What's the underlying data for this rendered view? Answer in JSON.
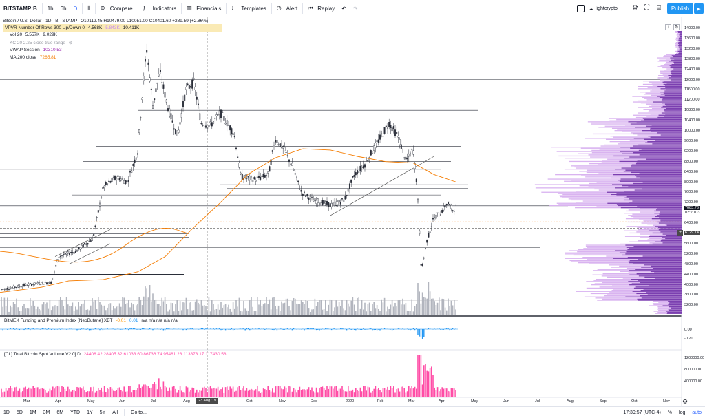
{
  "toolbar": {
    "symbol": "BITSTAMP:B",
    "intervals": [
      "1h",
      "6h",
      "D"
    ],
    "compare": "Compare",
    "indicators": "Indicators",
    "financials": "Financials",
    "templates": "Templates",
    "alert": "Alert",
    "replay": "Replay",
    "layout_name": "lightcrypto",
    "publish": "Publish"
  },
  "legend": {
    "title": "Bitcoin / U.S. Dollar · 1D · BITSTAMP",
    "ohlc": "O10112.45  H10479.00  L10051.00  C10401.60  +289.59 (+2.86%)",
    "vpvr": "VPVR Number Of Rows 300 Up/Down 0",
    "vpvr_v1": "4.568K",
    "vpvr_v2": "5.843K",
    "vpvr_v3": "10.411K",
    "vol": "Vol 20",
    "vol_v1": "5.557K",
    "vol_v2": "9.029K",
    "kc": "KC 20 2.25 close true range",
    "vwap": "VWAP Session",
    "vwap_v": "10310.53",
    "ma": "MA 200 close",
    "ma_v": "7265.81"
  },
  "funding": {
    "legend": "BitMEX Funding and Premium Index [NeoButane] XBT",
    "v1": "-0.01",
    "v2": "0.01",
    "rest": "n/a  n/a  n/a  n/a  n/a",
    "axis": [
      "0.00",
      "-0.20"
    ]
  },
  "spot": {
    "legend": "[CL] Total Bitcoin Spot Volume V2.0] D",
    "values": "24408.42  28405.32  61033.60  86736.74  95481.28  113873.17  117430.58",
    "axis": [
      "1200000.00",
      "800000.00",
      "400000.00"
    ]
  },
  "price_axis": [
    "14000.00",
    "13600.00",
    "13200.00",
    "12800.00",
    "12400.00",
    "12000.00",
    "11600.00",
    "11200.00",
    "10800.00",
    "10400.00",
    "10000.00",
    "9600.00",
    "9200.00",
    "8800.00",
    "8400.00",
    "8000.00",
    "7600.00",
    "7200.00",
    "6800.00",
    "6400.00",
    "6000.00",
    "5600.00",
    "5200.00",
    "4800.00",
    "4400.00",
    "4000.00",
    "3600.00",
    "3200.00"
  ],
  "price_tags": {
    "last": "7083.76",
    "countdown": "02:20:03",
    "cross": "6129.14"
  },
  "time_axis": [
    "Mar",
    "Apr",
    "May",
    "Jun",
    "Jul",
    "Aug",
    "Oct",
    "Nov",
    "Dec",
    "2020",
    "Feb",
    "Mar",
    "Apr",
    "May",
    "Jun",
    "Jul",
    "Aug",
    "Sep",
    "Oct",
    "Nov"
  ],
  "crosshair_date": "23 Aug '19",
  "bottombar": {
    "ranges": [
      "1D",
      "5D",
      "1M",
      "3M",
      "6M",
      "YTD",
      "1Y",
      "5Y",
      "All"
    ],
    "goto": "Go to...",
    "time": "17:39:57 (UTC-4)",
    "pct": "%",
    "log": "log",
    "auto": "auto"
  },
  "colors": {
    "candle": "#2a2e39",
    "ma": "#f57c00",
    "vpvr_up": "#7b3fb0",
    "vpvr_down": "#d9b3f0",
    "volume": "#b2b5be",
    "funding": "#2196f3",
    "spot": "#ff4da6",
    "publish": "#2196f3"
  }
}
